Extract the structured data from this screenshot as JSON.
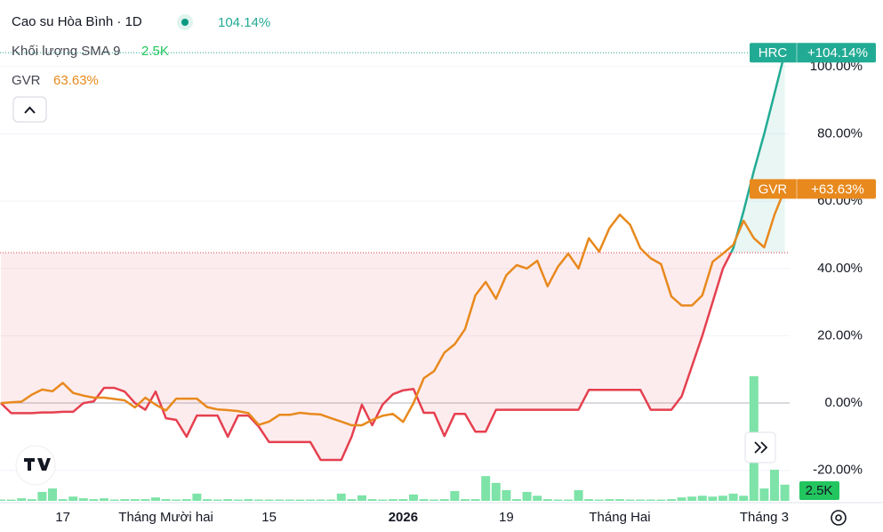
{
  "chart_data": {
    "type": "line",
    "legend": [
      {
        "text": "Cao su Hòa Bình · 1D",
        "value": "104.14%"
      },
      {
        "text": "Khối lượng SMA 9",
        "value": "2.5K"
      },
      {
        "text": "GVR",
        "value": "63.63%"
      }
    ],
    "categories": [
      null,
      null,
      null,
      null,
      null,
      null,
      "17",
      null,
      null,
      null,
      null,
      null,
      null,
      null,
      null,
      null,
      "Tháng Mười hai",
      null,
      null,
      null,
      null,
      null,
      null,
      null,
      null,
      null,
      "15",
      null,
      null,
      null,
      null,
      null,
      null,
      null,
      null,
      null,
      null,
      null,
      null,
      "2026",
      null,
      null,
      null,
      null,
      null,
      null,
      null,
      null,
      null,
      "19",
      null,
      null,
      null,
      null,
      null,
      null,
      null,
      null,
      null,
      null,
      "Tháng Hai",
      null,
      null,
      null,
      null,
      null,
      null,
      null,
      null,
      null,
      null,
      null,
      null,
      null,
      "Tháng 3",
      null,
      null
    ],
    "baseline": 44.7,
    "series": [
      {
        "name": "HRC",
        "color_up": "#22ab94",
        "color_down": "#e5404f",
        "last_label": "+104.14%",
        "values": [
          0,
          -3,
          -3,
          -3,
          -2.8,
          -2.8,
          -2.6,
          -2.6,
          0,
          0.5,
          4.5,
          4.5,
          3.4,
          0,
          -2,
          3.4,
          -4.5,
          -5,
          -10,
          -3.7,
          -3.7,
          -3.7,
          -10,
          -3.7,
          -3.7,
          -7,
          -11.6,
          -11.6,
          -11.6,
          -11.6,
          -11.6,
          -16.9,
          -16.9,
          -16.9,
          -10,
          -0.5,
          -6.6,
          -0.5,
          2.6,
          3.8,
          4.2,
          -2.9,
          -2.9,
          -9.8,
          -3.2,
          -3.2,
          -8.5,
          -8.5,
          -2,
          -2,
          -2,
          -2,
          -2,
          -2,
          -2,
          -2,
          -2,
          3.9,
          3.9,
          3.9,
          3.9,
          3.9,
          3.9,
          -2,
          -2,
          -2,
          2,
          11,
          20,
          30,
          40,
          46,
          57,
          69,
          80,
          92,
          104.14
        ]
      },
      {
        "name": "GVR",
        "color": "#e8891d",
        "last_label": "+63.63%",
        "values": [
          0,
          0.2,
          0.4,
          2.5,
          4,
          3.5,
          6,
          3,
          2.2,
          1.6,
          1.6,
          1.2,
          0.8,
          -1.3,
          1.6,
          -0.5,
          -2.2,
          1.3,
          1.3,
          1.3,
          -1.2,
          -1.9,
          -2.1,
          -2.4,
          -3,
          -6.5,
          -5.5,
          -3.5,
          -3.5,
          -2.9,
          -3.2,
          -3.4,
          -4.5,
          -5.5,
          -6.6,
          -6.6,
          -5,
          -3.8,
          -3.2,
          -5.6,
          0,
          7.4,
          9.5,
          15,
          17.5,
          22,
          32,
          36,
          31,
          38,
          41,
          40,
          42.3,
          34.7,
          40.5,
          44.4,
          40,
          49,
          45,
          52,
          56,
          53,
          46,
          43,
          41.3,
          31.7,
          29,
          29,
          32,
          42,
          44.4,
          47,
          54.2,
          49,
          46.3,
          56,
          63.63
        ]
      }
    ],
    "volume": {
      "color": "#7ee3a8",
      "down_color": "#f28b93",
      "last_label": "2.5K",
      "values": [
        0.3,
        0.3,
        0.6,
        0.4,
        2.1,
        2.9,
        0.4,
        1,
        0.6,
        0.4,
        0.6,
        0.3,
        0.4,
        0.4,
        0.4,
        0.8,
        0.4,
        0.3,
        0.4,
        1.7,
        0.4,
        0.3,
        0.4,
        0.3,
        0.4,
        0.3,
        0.3,
        0.3,
        0.3,
        0.3,
        0.3,
        0.3,
        0.3,
        1.7,
        0.4,
        1.3,
        0.4,
        0.3,
        0.4,
        0.4,
        1.5,
        0.4,
        0.3,
        0.4,
        2.3,
        0.4,
        0.4,
        5.8,
        4.2,
        2.5,
        0.4,
        2.1,
        1.2,
        0.4,
        0.3,
        0.3,
        2.5,
        0.4,
        0.3,
        0.4,
        0.4,
        0.3,
        0.3,
        0.3,
        0.3,
        0.4,
        0.8,
        1,
        1.2,
        1,
        1.2,
        1.7,
        1.2,
        29.2,
        2.9,
        7.3,
        3.8
      ]
    },
    "ylim": [
      -29.6,
      119.8
    ],
    "yticks": [
      {
        "value": 100,
        "label": "100.00%"
      },
      {
        "value": 80,
        "label": "80.00%"
      },
      {
        "value": 60,
        "label": "60.00%"
      },
      {
        "value": 40,
        "label": "40.00%"
      },
      {
        "value": 20,
        "label": "20.00%"
      },
      {
        "value": 0,
        "label": "0.00%"
      },
      {
        "value": -20,
        "label": "-20.00%"
      }
    ],
    "grid": true
  }
}
